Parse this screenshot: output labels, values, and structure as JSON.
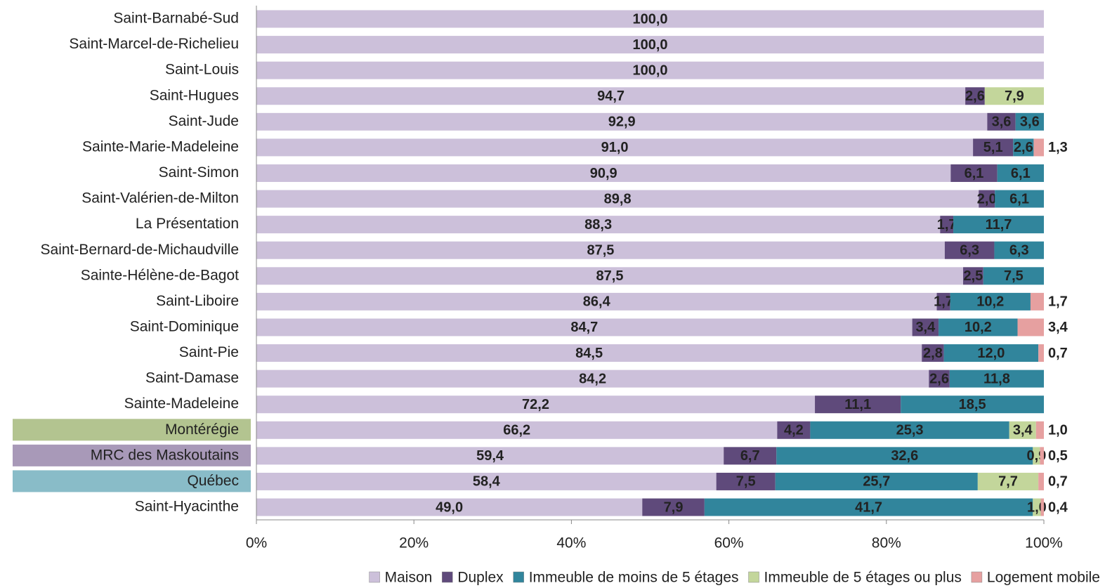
{
  "chart_data": {
    "type": "stacked_bar_horizontal_percent",
    "categories": [
      "Saint-Barnabé-Sud",
      "Saint-Marcel-de-Richelieu",
      "Saint-Louis",
      "Saint-Hugues",
      "Saint-Jude",
      "Sainte-Marie-Madeleine",
      "Saint-Simon",
      "Saint-Valérien-de-Milton",
      "La Présentation",
      "Saint-Bernard-de-Michaudville",
      "Sainte-Hélène-de-Bagot",
      "Saint-Liboire",
      "Saint-Dominique",
      "Saint-Pie",
      "Saint-Damase",
      "Sainte-Madeleine",
      "Montérégie",
      "MRC des Maskoutains",
      "Québec",
      "Saint-Hyacinthe"
    ],
    "category_backgrounds": [
      null,
      null,
      null,
      null,
      null,
      null,
      null,
      null,
      null,
      null,
      null,
      null,
      null,
      null,
      null,
      null,
      "#b3c490",
      "#a899b8",
      "#89bcc8",
      null
    ],
    "series": [
      {
        "name": "Maison",
        "color": "#ccc0da",
        "label_color": "#3f3151",
        "values": [
          100.0,
          100.0,
          100.0,
          94.7,
          92.9,
          91.0,
          90.9,
          89.8,
          88.3,
          87.5,
          87.5,
          86.4,
          84.7,
          84.5,
          84.2,
          72.2,
          66.2,
          59.4,
          58.4,
          49.0
        ],
        "value_labels": [
          "100,0",
          "100,0",
          "100,0",
          "94,7",
          "92,9",
          "91,0",
          "90,9",
          "89,8",
          "88,3",
          "87,5",
          "87,5",
          "86,4",
          "84,7",
          "84,5",
          "84,2",
          "72,2",
          "66,2",
          "59,4",
          "58,4",
          "49,0"
        ]
      },
      {
        "name": "Duplex",
        "color": "#5f4a7b",
        "label_color": "#ffffff",
        "values": [
          null,
          null,
          null,
          2.6,
          3.6,
          5.1,
          6.1,
          2.0,
          1.7,
          6.3,
          2.5,
          1.7,
          3.4,
          2.8,
          2.6,
          11.1,
          4.2,
          6.7,
          7.5,
          7.9
        ],
        "value_labels": [
          null,
          null,
          null,
          "2,6",
          "3,6",
          "5,1",
          "6,1",
          "2,0",
          "1,7",
          "6,3",
          "2,5",
          "1,7",
          "3,4",
          "2,8",
          "2,6",
          "11,1",
          "4,2",
          "6,7",
          "7,5",
          "7,9"
        ]
      },
      {
        "name": "Immeuble de moins de 5 étages",
        "color": "#31859c",
        "label_color": "#ffffff",
        "values": [
          null,
          null,
          null,
          null,
          3.6,
          2.6,
          6.1,
          6.1,
          11.7,
          6.3,
          7.5,
          10.2,
          10.2,
          12.0,
          11.8,
          18.5,
          25.3,
          32.6,
          25.7,
          41.7
        ],
        "value_labels": [
          null,
          null,
          null,
          null,
          "3,6",
          "2,6",
          "6,1",
          "6,1",
          "11,7",
          "6,3",
          "7,5",
          "10,2",
          "10,2",
          "12,0",
          "11,8",
          "18,5",
          "25,3",
          "32,6",
          "25,7",
          "41,7"
        ]
      },
      {
        "name": "Immeuble de 5 étages ou plus",
        "color": "#c3d69b",
        "label_color": "#4f6228",
        "values": [
          null,
          null,
          null,
          7.9,
          null,
          null,
          null,
          null,
          null,
          null,
          null,
          null,
          null,
          null,
          null,
          null,
          3.4,
          0.9,
          7.7,
          1.0
        ],
        "value_labels": [
          null,
          null,
          null,
          "7,9",
          null,
          null,
          null,
          null,
          null,
          null,
          null,
          null,
          null,
          null,
          null,
          null,
          "3,4",
          "0,9",
          "7,7",
          "1,0"
        ]
      },
      {
        "name": "Logement mobile",
        "color": "#e6a0a0",
        "label_color": "#953735",
        "values": [
          null,
          null,
          null,
          null,
          null,
          1.3,
          null,
          null,
          null,
          null,
          null,
          1.7,
          3.4,
          0.7,
          null,
          null,
          1.0,
          0.5,
          0.7,
          0.4
        ],
        "value_labels": [
          null,
          null,
          null,
          null,
          null,
          "1,3",
          null,
          null,
          null,
          null,
          null,
          "1,7",
          "3,4",
          "0,7",
          null,
          null,
          "1,0",
          "0,5",
          "0,7",
          "0,4"
        ]
      }
    ],
    "xlim": [
      0,
      100
    ],
    "xticks": [
      {
        "value": 0,
        "label": "0%"
      },
      {
        "value": 20,
        "label": "20%"
      },
      {
        "value": 40,
        "label": "40%"
      },
      {
        "value": 60,
        "label": "60%"
      },
      {
        "value": 80,
        "label": "80%"
      },
      {
        "value": 100,
        "label": "100%"
      }
    ],
    "legend": "bottom"
  }
}
